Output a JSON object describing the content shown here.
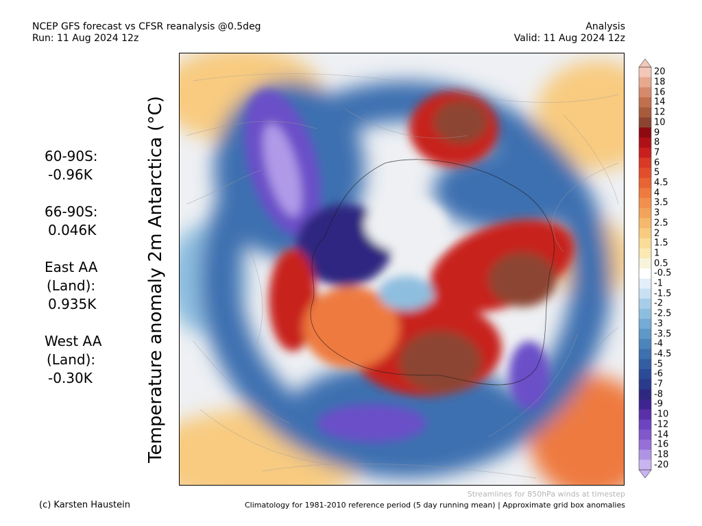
{
  "header": {
    "title": "NCEP GFS forecast vs CFSR reanalysis @0.5deg",
    "run": "Run: 11 Aug 2024 12z",
    "type": "Analysis",
    "valid": "Valid: 11 Aug 2024 12z"
  },
  "y_label": "Temperature anomaly 2m Antarctica (°C)",
  "stats": [
    {
      "lines": [
        "60-90S:"
      ],
      "value": "-0.96K"
    },
    {
      "lines": [
        "66-90S:"
      ],
      "value": "0.046K"
    },
    {
      "lines": [
        "East AA",
        "(Land):"
      ],
      "value": "0.935K"
    },
    {
      "lines": [
        "West AA",
        "(Land):"
      ],
      "value": "-0.30K"
    }
  ],
  "colorbar": {
    "labels": [
      "20",
      "18",
      "16",
      "14",
      "12",
      "10",
      "9",
      "8",
      "7",
      "6",
      "5",
      "4.5",
      "4",
      "3.5",
      "3",
      "2.5",
      "2",
      "1.5",
      "1",
      "0.5",
      "-0.5",
      "-1",
      "-1.5",
      "-2",
      "-2.5",
      "-3",
      "-3.5",
      "-4",
      "-4.5",
      "-5",
      "-6",
      "-7",
      "-8",
      "-9",
      "-10",
      "-12",
      "-14",
      "-16",
      "-18",
      "-20"
    ],
    "colors": [
      "#f3c8b8",
      "#e6a98f",
      "#d68a6c",
      "#c0704f",
      "#a85a3c",
      "#8c4430",
      "#8e0a12",
      "#b01018",
      "#c8201e",
      "#d83a26",
      "#e24e2c",
      "#e86434",
      "#ee7a40",
      "#f1904c",
      "#f4a45a",
      "#f6b86c",
      "#f8cb80",
      "#f9dc98",
      "#fae9b4",
      "#f8f3dc",
      "#ffffff",
      "#e2eef8",
      "#c8e0f2",
      "#a8cde8",
      "#8ebedf",
      "#74aad4",
      "#5e98c8",
      "#4c84bc",
      "#3e70b0",
      "#345ea4",
      "#2b4a98",
      "#2a3a8c",
      "#2f2880",
      "#3e2490",
      "#5a30a8",
      "#6c44c0",
      "#8058cc",
      "#9670d8",
      "#b094e4",
      "#c8b4ee"
    ]
  },
  "map_colors": {
    "neutral": "#eef0f3",
    "cold_light": "#8ebedf",
    "cold_mid": "#3e6fb0",
    "cold_deep": "#2f2880",
    "cold_purple": "#6a4fc8",
    "cold_lavender": "#b09ae8",
    "warm_light": "#f8cb80",
    "warm_mid": "#ee7a40",
    "warm_deep": "#c8201e",
    "warm_brown": "#8c4430"
  },
  "footer": {
    "streamlines_note": "Streamlines for 850hPa winds at timestep",
    "credit": "(c) Karsten Haustein",
    "climatology_note": "Climatology for 1981-2010 reference period (5 day running mean) | Approximate grid box anomalies"
  }
}
